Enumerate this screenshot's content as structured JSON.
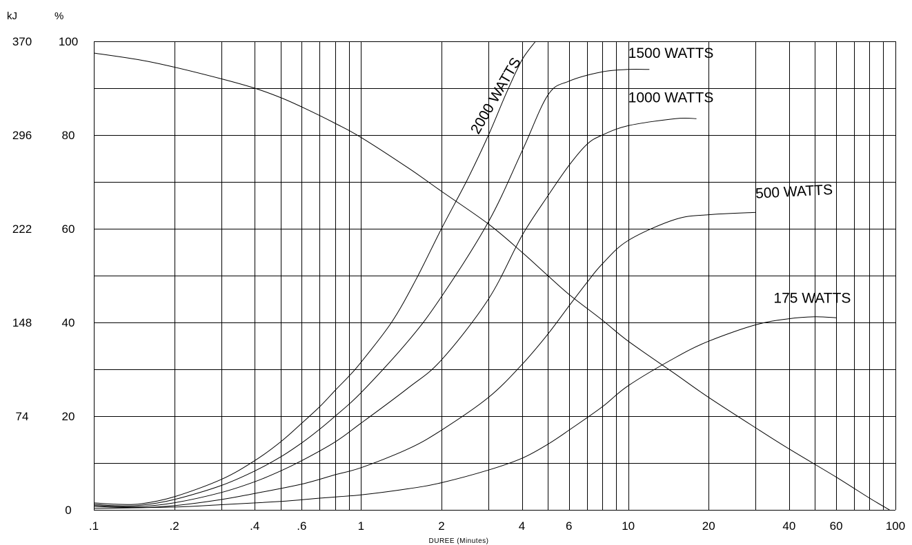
{
  "chart_data": {
    "type": "line",
    "title": "",
    "xlabel": "DUREE (Minutes)",
    "x_scale": "log",
    "xlim": [
      0.1,
      100
    ],
    "ylim": [
      0,
      100
    ],
    "grid": true,
    "y_units": {
      "left": "kJ",
      "right": "%"
    },
    "y_ticks_percent": [
      "0",
      "20",
      "40",
      "60",
      "80",
      "100"
    ],
    "y_ticks_kj": [
      "",
      "74",
      "148",
      "222",
      "296",
      "370"
    ],
    "x_ticks": [
      {
        "value": 0.1,
        "label": ".1"
      },
      {
        "value": 0.2,
        "label": ".2"
      },
      {
        "value": 0.4,
        "label": ".4"
      },
      {
        "value": 0.6,
        "label": ".6"
      },
      {
        "value": 1,
        "label": "1"
      },
      {
        "value": 2,
        "label": "2"
      },
      {
        "value": 4,
        "label": "4"
      },
      {
        "value": 6,
        "label": "6"
      },
      {
        "value": 10,
        "label": "10"
      },
      {
        "value": 20,
        "label": "20"
      },
      {
        "value": 40,
        "label": "40"
      },
      {
        "value": 60,
        "label": "60"
      },
      {
        "value": 100,
        "label": "100"
      }
    ],
    "x_grid": [
      0.1,
      0.2,
      0.3,
      0.4,
      0.5,
      0.6,
      0.7,
      0.8,
      0.9,
      1,
      2,
      3,
      4,
      5,
      6,
      7,
      8,
      9,
      10,
      20,
      30,
      40,
      50,
      60,
      70,
      80,
      90,
      100
    ],
    "y_grid": [
      0,
      10,
      20,
      30,
      40,
      50,
      60,
      70,
      80,
      90,
      100
    ],
    "series": [
      {
        "name": "2000 WATTS",
        "points": [
          [
            0.1,
            1.5
          ],
          [
            0.12,
            1.2
          ],
          [
            0.15,
            1.3
          ],
          [
            0.2,
            2.8
          ],
          [
            0.3,
            6.5
          ],
          [
            0.4,
            10.5
          ],
          [
            0.5,
            14.5
          ],
          [
            0.6,
            18.5
          ],
          [
            0.7,
            22
          ],
          [
            0.8,
            25.5
          ],
          [
            0.9,
            28.5
          ],
          [
            1,
            31.5
          ],
          [
            1.3,
            40
          ],
          [
            1.6,
            49
          ],
          [
            2,
            60
          ],
          [
            2.5,
            70.5
          ],
          [
            3,
            80
          ],
          [
            3.5,
            89
          ],
          [
            4,
            96
          ],
          [
            4.5,
            100
          ]
        ]
      },
      {
        "name": "1500 WATTS",
        "points": [
          [
            0.1,
            1.2
          ],
          [
            0.12,
            0.9
          ],
          [
            0.15,
            1.0
          ],
          [
            0.2,
            2.2
          ],
          [
            0.3,
            5.2
          ],
          [
            0.4,
            8.3
          ],
          [
            0.5,
            11.3
          ],
          [
            0.6,
            14.3
          ],
          [
            0.7,
            17.2
          ],
          [
            0.8,
            20
          ],
          [
            1,
            25
          ],
          [
            1.5,
            36
          ],
          [
            2,
            45.5
          ],
          [
            3,
            61.5
          ],
          [
            4,
            76.5
          ],
          [
            5,
            88.5
          ],
          [
            6,
            91.5
          ],
          [
            8,
            93.5
          ],
          [
            10,
            94
          ],
          [
            12,
            94
          ]
        ]
      },
      {
        "name": "1000 WATTS",
        "points": [
          [
            0.1,
            1
          ],
          [
            0.12,
            0.7
          ],
          [
            0.15,
            0.7
          ],
          [
            0.2,
            1.5
          ],
          [
            0.3,
            3.7
          ],
          [
            0.4,
            6
          ],
          [
            0.5,
            8.3
          ],
          [
            0.6,
            10.5
          ],
          [
            0.8,
            14.5
          ],
          [
            1,
            18.5
          ],
          [
            1.5,
            26
          ],
          [
            2,
            32
          ],
          [
            3,
            45
          ],
          [
            4,
            58.5
          ],
          [
            5,
            67
          ],
          [
            6,
            73.5
          ],
          [
            7,
            78
          ],
          [
            8,
            80
          ],
          [
            10,
            82
          ],
          [
            15,
            83.5
          ],
          [
            18,
            83.5
          ]
        ]
      },
      {
        "name": "500 WATTS",
        "points": [
          [
            0.1,
            0.7
          ],
          [
            0.15,
            0.5
          ],
          [
            0.2,
            0.9
          ],
          [
            0.3,
            2.2
          ],
          [
            0.4,
            3.5
          ],
          [
            0.6,
            5.5
          ],
          [
            0.8,
            7.5
          ],
          [
            1,
            9
          ],
          [
            1.5,
            13
          ],
          [
            2,
            17
          ],
          [
            3,
            24
          ],
          [
            4,
            31
          ],
          [
            5,
            37.5
          ],
          [
            6,
            43.5
          ],
          [
            7,
            48.5
          ],
          [
            8,
            52.5
          ],
          [
            10,
            57.5
          ],
          [
            15,
            62
          ],
          [
            20,
            63
          ],
          [
            30,
            63.5
          ]
        ]
      },
      {
        "name": "175 WATTS",
        "points": [
          [
            0.1,
            0.3
          ],
          [
            0.2,
            0.6
          ],
          [
            0.3,
            1.1
          ],
          [
            0.5,
            1.8
          ],
          [
            0.7,
            2.5
          ],
          [
            1,
            3.2
          ],
          [
            1.5,
            4.5
          ],
          [
            2,
            5.8
          ],
          [
            3,
            8.5
          ],
          [
            4,
            11
          ],
          [
            5,
            14
          ],
          [
            6,
            17
          ],
          [
            8,
            22
          ],
          [
            10,
            26.5
          ],
          [
            15,
            32.5
          ],
          [
            20,
            36
          ],
          [
            30,
            39.5
          ],
          [
            40,
            40.8
          ],
          [
            50,
            41.2
          ],
          [
            60,
            41
          ]
        ]
      },
      {
        "name": "",
        "points": [
          [
            0.1,
            97.5
          ],
          [
            0.15,
            96
          ],
          [
            0.2,
            94.5
          ],
          [
            0.3,
            92
          ],
          [
            0.4,
            90
          ],
          [
            0.5,
            88
          ],
          [
            0.6,
            86
          ],
          [
            0.8,
            82.5
          ],
          [
            1,
            79.5
          ],
          [
            1.5,
            73
          ],
          [
            2,
            68
          ],
          [
            3,
            61
          ],
          [
            4,
            55
          ],
          [
            5,
            50
          ],
          [
            6,
            46
          ],
          [
            8,
            40.5
          ],
          [
            10,
            36
          ],
          [
            15,
            29
          ],
          [
            20,
            24
          ],
          [
            30,
            17.5
          ],
          [
            40,
            13
          ],
          [
            60,
            7
          ],
          [
            80,
            2.5
          ],
          [
            95,
            0
          ]
        ]
      }
    ],
    "series_labels": [
      {
        "series": "2000 WATTS",
        "text": "2000 WATTS",
        "x": 2.75,
        "y": 80,
        "rotate": -60
      },
      {
        "series": "1500 WATTS",
        "text": "1500 WATTS",
        "x": 10,
        "y": 96.5,
        "rotate": 0
      },
      {
        "series": "1000 WATTS",
        "text": "1000 WATTS",
        "x": 10,
        "y": 87,
        "rotate": 0
      },
      {
        "series": "500 WATTS",
        "text": "500 WATTS",
        "x": 30,
        "y": 66.5,
        "rotate": -3
      },
      {
        "series": "175 WATTS",
        "text": "175 WATTS",
        "x": 35,
        "y": 44.2,
        "rotate": 0
      }
    ]
  }
}
